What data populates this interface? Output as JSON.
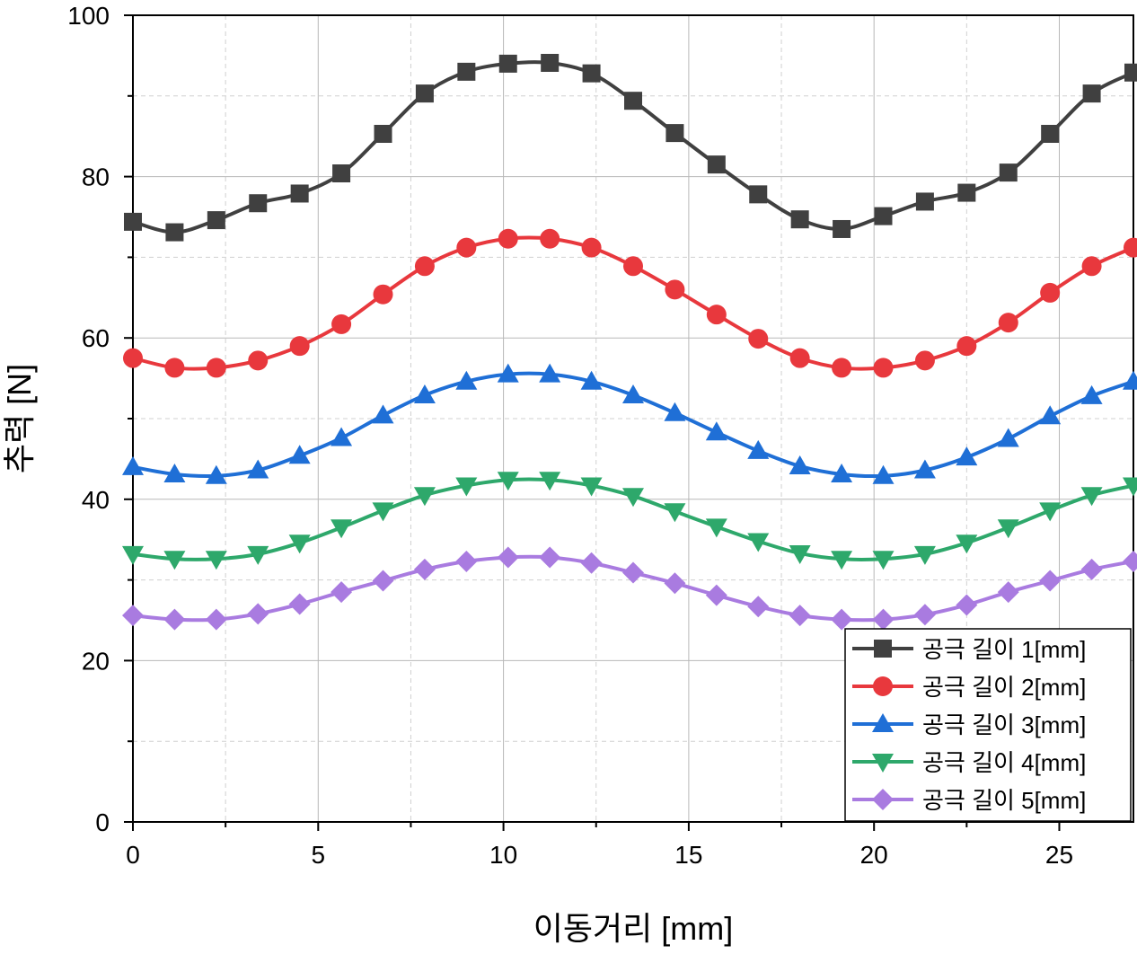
{
  "chart_data": {
    "type": "line",
    "title": "",
    "xlabel": "이동거리 [mm]",
    "ylabel": "추력 [N]",
    "xlim": [
      0,
      27
    ],
    "ylim": [
      0,
      100
    ],
    "x_ticks": [
      0,
      5,
      10,
      15,
      20,
      25
    ],
    "y_ticks": [
      0,
      20,
      40,
      60,
      80,
      100
    ],
    "x_tick_labels": [
      "0",
      "5",
      "10",
      "15",
      "20",
      "25"
    ],
    "y_tick_labels": [
      "0",
      "20",
      "40",
      "60",
      "80",
      "100"
    ],
    "grid": true,
    "legend_position": "bottom-right",
    "x": [
      0,
      1.125,
      2.25,
      3.375,
      4.5,
      5.625,
      6.75,
      7.875,
      9,
      10.125,
      11.25,
      12.375,
      13.5,
      14.625,
      15.75,
      16.875,
      18,
      19.125,
      20.25,
      21.375,
      22.5,
      23.625,
      24.75,
      25.875,
      27
    ],
    "series": [
      {
        "name": "공극 길이 1[mm]",
        "color": "#404040",
        "marker": "square",
        "values": [
          74.4,
          73.1,
          74.6,
          76.7,
          77.9,
          80.4,
          85.3,
          90.3,
          93.0,
          94.0,
          94.1,
          92.8,
          89.4,
          85.4,
          81.5,
          77.8,
          74.7,
          73.5,
          75.1,
          76.9,
          78.0,
          80.5,
          85.3,
          90.3,
          92.9
        ]
      },
      {
        "name": "공극 길이 2[mm]",
        "color": "#e8383d",
        "marker": "circle",
        "values": [
          57.5,
          56.3,
          56.3,
          57.2,
          59.0,
          61.7,
          65.4,
          68.9,
          71.2,
          72.3,
          72.3,
          71.2,
          68.9,
          66.0,
          62.9,
          59.9,
          57.5,
          56.3,
          56.3,
          57.2,
          59.0,
          61.9,
          65.6,
          68.9,
          71.2
        ]
      },
      {
        "name": "공극 길이 3[mm]",
        "color": "#1f6fd6",
        "marker": "triangle-up",
        "values": [
          44.0,
          43.1,
          42.9,
          43.6,
          45.4,
          47.6,
          50.4,
          52.9,
          54.6,
          55.5,
          55.5,
          54.6,
          52.9,
          50.7,
          48.3,
          46.0,
          44.1,
          43.1,
          42.9,
          43.6,
          45.2,
          47.5,
          50.3,
          52.8,
          54.6
        ]
      },
      {
        "name": "공극 길이 4[mm]",
        "color": "#2ea86b",
        "marker": "triangle-down",
        "values": [
          33.2,
          32.6,
          32.6,
          33.2,
          34.6,
          36.5,
          38.6,
          40.5,
          41.7,
          42.4,
          42.4,
          41.7,
          40.4,
          38.5,
          36.6,
          34.8,
          33.3,
          32.6,
          32.6,
          33.2,
          34.6,
          36.5,
          38.6,
          40.5,
          41.7
        ]
      },
      {
        "name": "공극 길이 5[mm]",
        "color": "#a97be0",
        "marker": "diamond",
        "values": [
          25.6,
          25.1,
          25.1,
          25.8,
          27.0,
          28.5,
          29.9,
          31.3,
          32.3,
          32.8,
          32.8,
          32.1,
          30.9,
          29.6,
          28.1,
          26.7,
          25.6,
          25.1,
          25.1,
          25.7,
          26.9,
          28.5,
          29.9,
          31.3,
          32.3
        ]
      }
    ]
  }
}
